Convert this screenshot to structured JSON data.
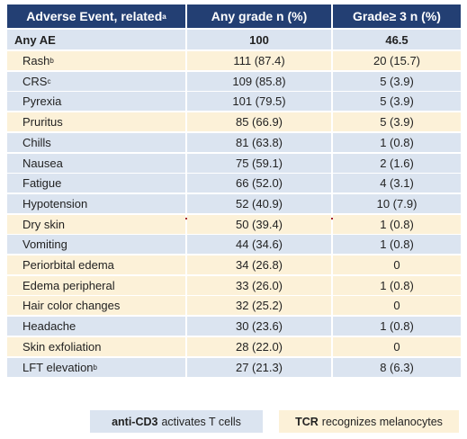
{
  "table": {
    "header": [
      {
        "text": "Adverse Event, related",
        "sup": "a"
      },
      {
        "text": "Any grade n (%)"
      },
      {
        "text": "Grade≥ 3 n (%)"
      }
    ],
    "header_color": "#233f73",
    "summary": {
      "cells": [
        "Any AE",
        "100",
        "46.5"
      ],
      "color": "#dbe4f0"
    },
    "rows": [
      {
        "cells": [
          {
            "text": "Rash",
            "sup": "b"
          },
          "111 (87.4)",
          "20 (15.7)"
        ],
        "color": "#fcf1d8"
      },
      {
        "cells": [
          {
            "text": "CRS",
            "sup": "c"
          },
          "109 (85.8)",
          "5 (3.9)"
        ],
        "color": "#dbe4f0"
      },
      {
        "cells": [
          {
            "text": "Pyrexia"
          },
          "101 (79.5)",
          "5 (3.9)"
        ],
        "color": "#dbe4f0"
      },
      {
        "cells": [
          {
            "text": "Pruritus"
          },
          "85 (66.9)",
          "5 (3.9)"
        ],
        "color": "#fcf1d8"
      },
      {
        "cells": [
          {
            "text": "Chills"
          },
          "81 (63.8)",
          "1 (0.8)"
        ],
        "color": "#dbe4f0"
      },
      {
        "cells": [
          {
            "text": "Nausea"
          },
          "75 (59.1)",
          "2 (1.6)"
        ],
        "color": "#dbe4f0"
      },
      {
        "cells": [
          {
            "text": "Fatigue"
          },
          "66 (52.0)",
          "4 (3.1)"
        ],
        "color": "#dbe4f0"
      },
      {
        "cells": [
          {
            "text": "Hypotension"
          },
          "52 (40.9)",
          "10 (7.9)"
        ],
        "color": "#dbe4f0"
      },
      {
        "cells": [
          {
            "text": "Dry skin"
          },
          "50 (39.4)",
          "1 (0.8)"
        ],
        "color": "#fcf1d8"
      },
      {
        "cells": [
          {
            "text": "Vomiting"
          },
          "44 (34.6)",
          "1 (0.8)"
        ],
        "color": "#dbe4f0"
      },
      {
        "cells": [
          {
            "text": "Periorbital edema"
          },
          "34 (26.8)",
          "0"
        ],
        "color": "#fcf1d8"
      },
      {
        "cells": [
          {
            "text": "Edema peripheral"
          },
          "33 (26.0)",
          "1 (0.8)"
        ],
        "color": "#fcf1d8"
      },
      {
        "cells": [
          {
            "text": "Hair color changes"
          },
          "32 (25.2)",
          "0"
        ],
        "color": "#fcf1d8"
      },
      {
        "cells": [
          {
            "text": "Headache"
          },
          "30 (23.6)",
          "1 (0.8)"
        ],
        "color": "#dbe4f0"
      },
      {
        "cells": [
          {
            "text": "Skin exfoliation"
          },
          "28 (22.0)",
          "0"
        ],
        "color": "#fcf1d8"
      },
      {
        "cells": [
          {
            "text": "LFT elevation",
            "sup": "b"
          },
          "27 (21.3)",
          "8 (6.3)"
        ],
        "color": "#dbe4f0"
      }
    ]
  },
  "legend": [
    {
      "bold": "anti-CD3",
      "text": "activates T cells",
      "color": "#dbe4f0"
    },
    {
      "bold": "TCR",
      "text": "recognizes melanocytes",
      "color": "#fcf1d8"
    }
  ]
}
